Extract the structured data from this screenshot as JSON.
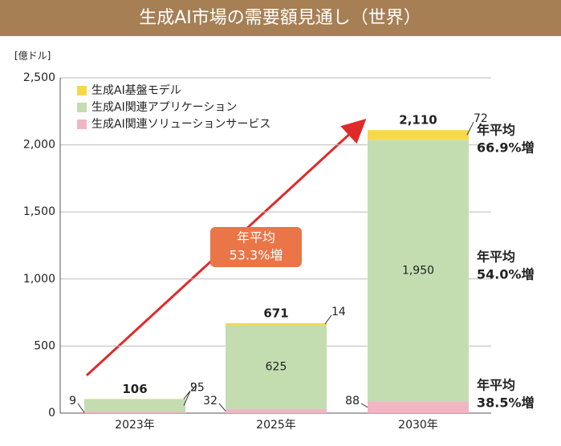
{
  "chart_data": {
    "type": "stacked_bar",
    "title": "生成AI市場の需要額見通し（世界）",
    "y_unit": "[億ドル]",
    "categories": [
      "2023年",
      "2025年",
      "2030年"
    ],
    "series": [
      {
        "name": "生成AI関連ソリューションサービス",
        "color": "#f0b6c4",
        "values": [
          9,
          32,
          88
        ]
      },
      {
        "name": "生成AI関連アプリケーション",
        "color": "#c3ddb0",
        "values": [
          95,
          625,
          1950
        ],
        "value_labels": [
          "95",
          "625",
          "1,950"
        ]
      },
      {
        "name": "生成AI基盤モデル",
        "color": "#f6d84a",
        "values": [
          2,
          14,
          72
        ]
      }
    ],
    "legend_order": [
      2,
      1,
      0
    ],
    "totals": {
      "values": [
        106,
        671,
        2110
      ],
      "value_labels": [
        "106",
        "671",
        "2,110"
      ]
    },
    "ylim": [
      0,
      2500
    ],
    "yticks": [
      0,
      500,
      {
        "value": 1000,
        "label": "1,000"
      },
      {
        "value": 1500,
        "label": "1,500"
      },
      {
        "value": 2000,
        "label": "2,000"
      },
      {
        "value": 2500,
        "label": "2,500"
      }
    ],
    "grid": true,
    "growth_arrow": {
      "lines": [
        "年平均",
        "53.3%増"
      ]
    },
    "side_annotations": [
      {
        "lines": [
          "年平均",
          "66.9%増"
        ]
      },
      {
        "lines": [
          "年平均",
          "54.0%増"
        ]
      },
      {
        "lines": [
          "年平均",
          "38.5%増"
        ]
      }
    ]
  }
}
